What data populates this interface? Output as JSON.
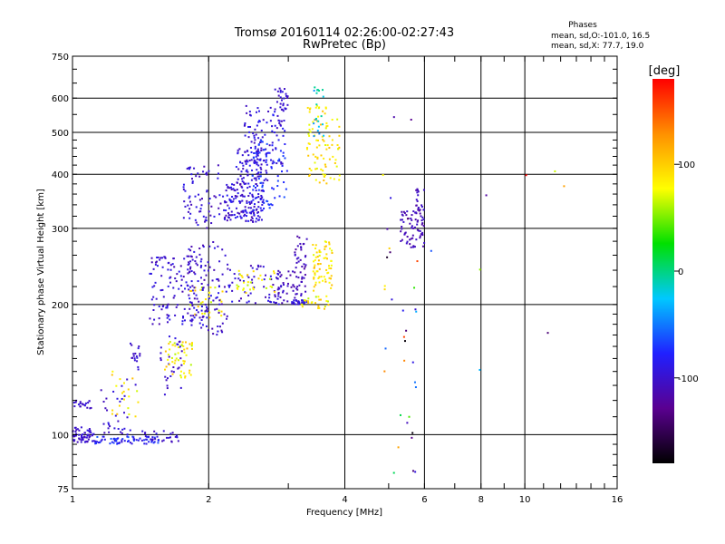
{
  "chart_data": {
    "type": "scatter",
    "title": "Tromsø 20160114 02:26:00-02:27:43",
    "subtitle": "RwPretec (Bp)",
    "xlabel": "Frequency [MHz]",
    "ylabel": "Stationary phase Virtual Height [km]",
    "xscale": "log",
    "yscale": "log",
    "xlim": [
      1,
      16
    ],
    "ylim": [
      75,
      750
    ],
    "x_ticks": [
      1,
      2,
      4,
      6,
      8,
      10,
      16
    ],
    "x_tick_labels": [
      "1",
      "2",
      "4",
      "6",
      "8",
      "10",
      "16"
    ],
    "y_ticks": [
      75,
      100,
      200,
      300,
      400,
      500,
      600,
      750
    ],
    "y_tick_labels": [
      "75",
      "100",
      "200",
      "300",
      "400",
      "500",
      "600",
      "750"
    ],
    "grid": true,
    "stats": {
      "header": "Phases",
      "line_o": "mean, sd,O:-101.0, 16.5",
      "line_x": "mean, sd,X: 77.7, 19.0"
    },
    "colorbar": {
      "label": "[deg]",
      "range": [
        -180,
        180
      ],
      "ticks": [
        100,
        0,
        -100
      ],
      "tick_labels": [
        "100",
        "0",
        "-100"
      ],
      "colors": [
        "#000000",
        "#5a0090",
        "#2020ff",
        "#00c8ff",
        "#00e000",
        "#ffff00",
        "#ff9000",
        "#ff0000"
      ]
    },
    "series": [
      {
        "ranges": [
          {
            "f": [
              1.0,
              1.12
            ],
            "h": [
              96,
              100
            ],
            "p": [
              -110,
              -90
            ],
            "n": 40
          },
          {
            "f": [
              1.0,
              1.12
            ],
            "h": [
              100,
              104
            ],
            "p": [
              -110,
              -90
            ],
            "n": 20
          },
          {
            "f": [
              1.0,
              1.1
            ],
            "h": [
              115,
              120
            ],
            "p": [
              -110,
              -90
            ],
            "n": 20
          },
          {
            "f": [
              1.12,
              1.55
            ],
            "h": [
              95,
              99
            ],
            "p": [
              -100,
              -60
            ],
            "n": 70
          },
          {
            "f": [
              1.15,
              1.35
            ],
            "h": [
              100,
              130
            ],
            "p": [
              -110,
              -90
            ],
            "n": 30
          },
          {
            "f": [
              1.22,
              1.4
            ],
            "h": [
              110,
              140
            ],
            "p": [
              60,
              110
            ],
            "n": 20
          },
          {
            "f": [
              1.32,
              1.42
            ],
            "h": [
              130,
              165
            ],
            "p": [
              -110,
              -90
            ],
            "n": 20
          },
          {
            "f": [
              1.42,
              1.75
            ],
            "h": [
              96,
              102
            ],
            "p": [
              -110,
              -90
            ],
            "n": 25
          },
          {
            "f": [
              1.48,
              1.95
            ],
            "h": [
              180,
              260
            ],
            "p": [
              -115,
              -85
            ],
            "n": 140
          },
          {
            "f": [
              1.55,
              1.75
            ],
            "h": [
              120,
              170
            ],
            "p": [
              -110,
              -90
            ],
            "n": 30
          },
          {
            "f": [
              1.6,
              1.85
            ],
            "h": [
              135,
              165
            ],
            "p": [
              60,
              110
            ],
            "n": 50
          },
          {
            "f": [
              1.78,
              2.15
            ],
            "h": [
              185,
              220
            ],
            "p": [
              60,
              110
            ],
            "n": 30
          },
          {
            "f": [
              1.8,
              2.2
            ],
            "h": [
              170,
              280
            ],
            "p": [
              -115,
              -85
            ],
            "n": 90
          },
          {
            "f": [
              1.75,
              2.15
            ],
            "h": [
              300,
              420
            ],
            "p": [
              -115,
              -85
            ],
            "n": 70
          },
          {
            "f": [
              2.15,
              2.65
            ],
            "h": [
              310,
              380
            ],
            "p": [
              -115,
              -80
            ],
            "n": 150
          },
          {
            "f": [
              2.3,
              2.7
            ],
            "h": [
              380,
              460
            ],
            "p": [
              -110,
              -80
            ],
            "n": 80
          },
          {
            "f": [
              2.4,
              2.95
            ],
            "h": [
              420,
              580
            ],
            "p": [
              -110,
              -80
            ],
            "n": 100
          },
          {
            "f": [
              2.5,
              3.0
            ],
            "h": [
              330,
              480
            ],
            "p": [
              -80,
              -60
            ],
            "n": 60
          },
          {
            "f": [
              2.8,
              3.0
            ],
            "h": [
              560,
              640
            ],
            "p": [
              -110,
              -90
            ],
            "n": 25
          },
          {
            "f": [
              2.2,
              2.9
            ],
            "h": [
              200,
              250
            ],
            "p": [
              -115,
              -85
            ],
            "n": 60
          },
          {
            "f": [
              2.3,
              2.8
            ],
            "h": [
              210,
              240
            ],
            "p": [
              60,
              100
            ],
            "n": 30
          },
          {
            "f": [
              2.8,
              3.3
            ],
            "h": [
              200,
              240
            ],
            "p": [
              -120,
              -100
            ],
            "n": 60
          },
          {
            "f": [
              3.1,
              3.3
            ],
            "h": [
              230,
              290
            ],
            "p": [
              -120,
              -100
            ],
            "n": 30
          },
          {
            "f": [
              3.05,
              3.3
            ],
            "h": [
              200,
              205
            ],
            "p": [
              -100,
              -80
            ],
            "n": 20
          },
          {
            "f": [
              3.2,
              3.7
            ],
            "h": [
              195,
              210
            ],
            "p": [
              60,
              110
            ],
            "n": 25
          },
          {
            "f": [
              3.4,
              3.75
            ],
            "h": [
              215,
              280
            ],
            "p": [
              70,
              110
            ],
            "n": 70
          },
          {
            "f": [
              3.3,
              3.9
            ],
            "h": [
              380,
              580
            ],
            "p": [
              70,
              110
            ],
            "n": 90
          },
          {
            "f": [
              3.4,
              3.6
            ],
            "h": [
              460,
              640
            ],
            "p": [
              -50,
              0
            ],
            "n": 20
          },
          {
            "f": [
              5.3,
              6.0
            ],
            "h": [
              270,
              330
            ],
            "p": [
              -120,
              -100
            ],
            "n": 70
          },
          {
            "f": [
              5.75,
              6.0
            ],
            "h": [
              330,
              370
            ],
            "p": [
              -120,
              -100
            ],
            "n": 20
          },
          {
            "f": [
              4.7,
              5.8
            ],
            "h": [
              80,
              580
            ],
            "p": [
              -180,
              180
            ],
            "n": 35
          },
          {
            "f": [
              5.9,
              12.5
            ],
            "h": [
              130,
              480
            ],
            "p": [
              -180,
              180
            ],
            "n": 8
          }
        ]
      }
    ]
  }
}
